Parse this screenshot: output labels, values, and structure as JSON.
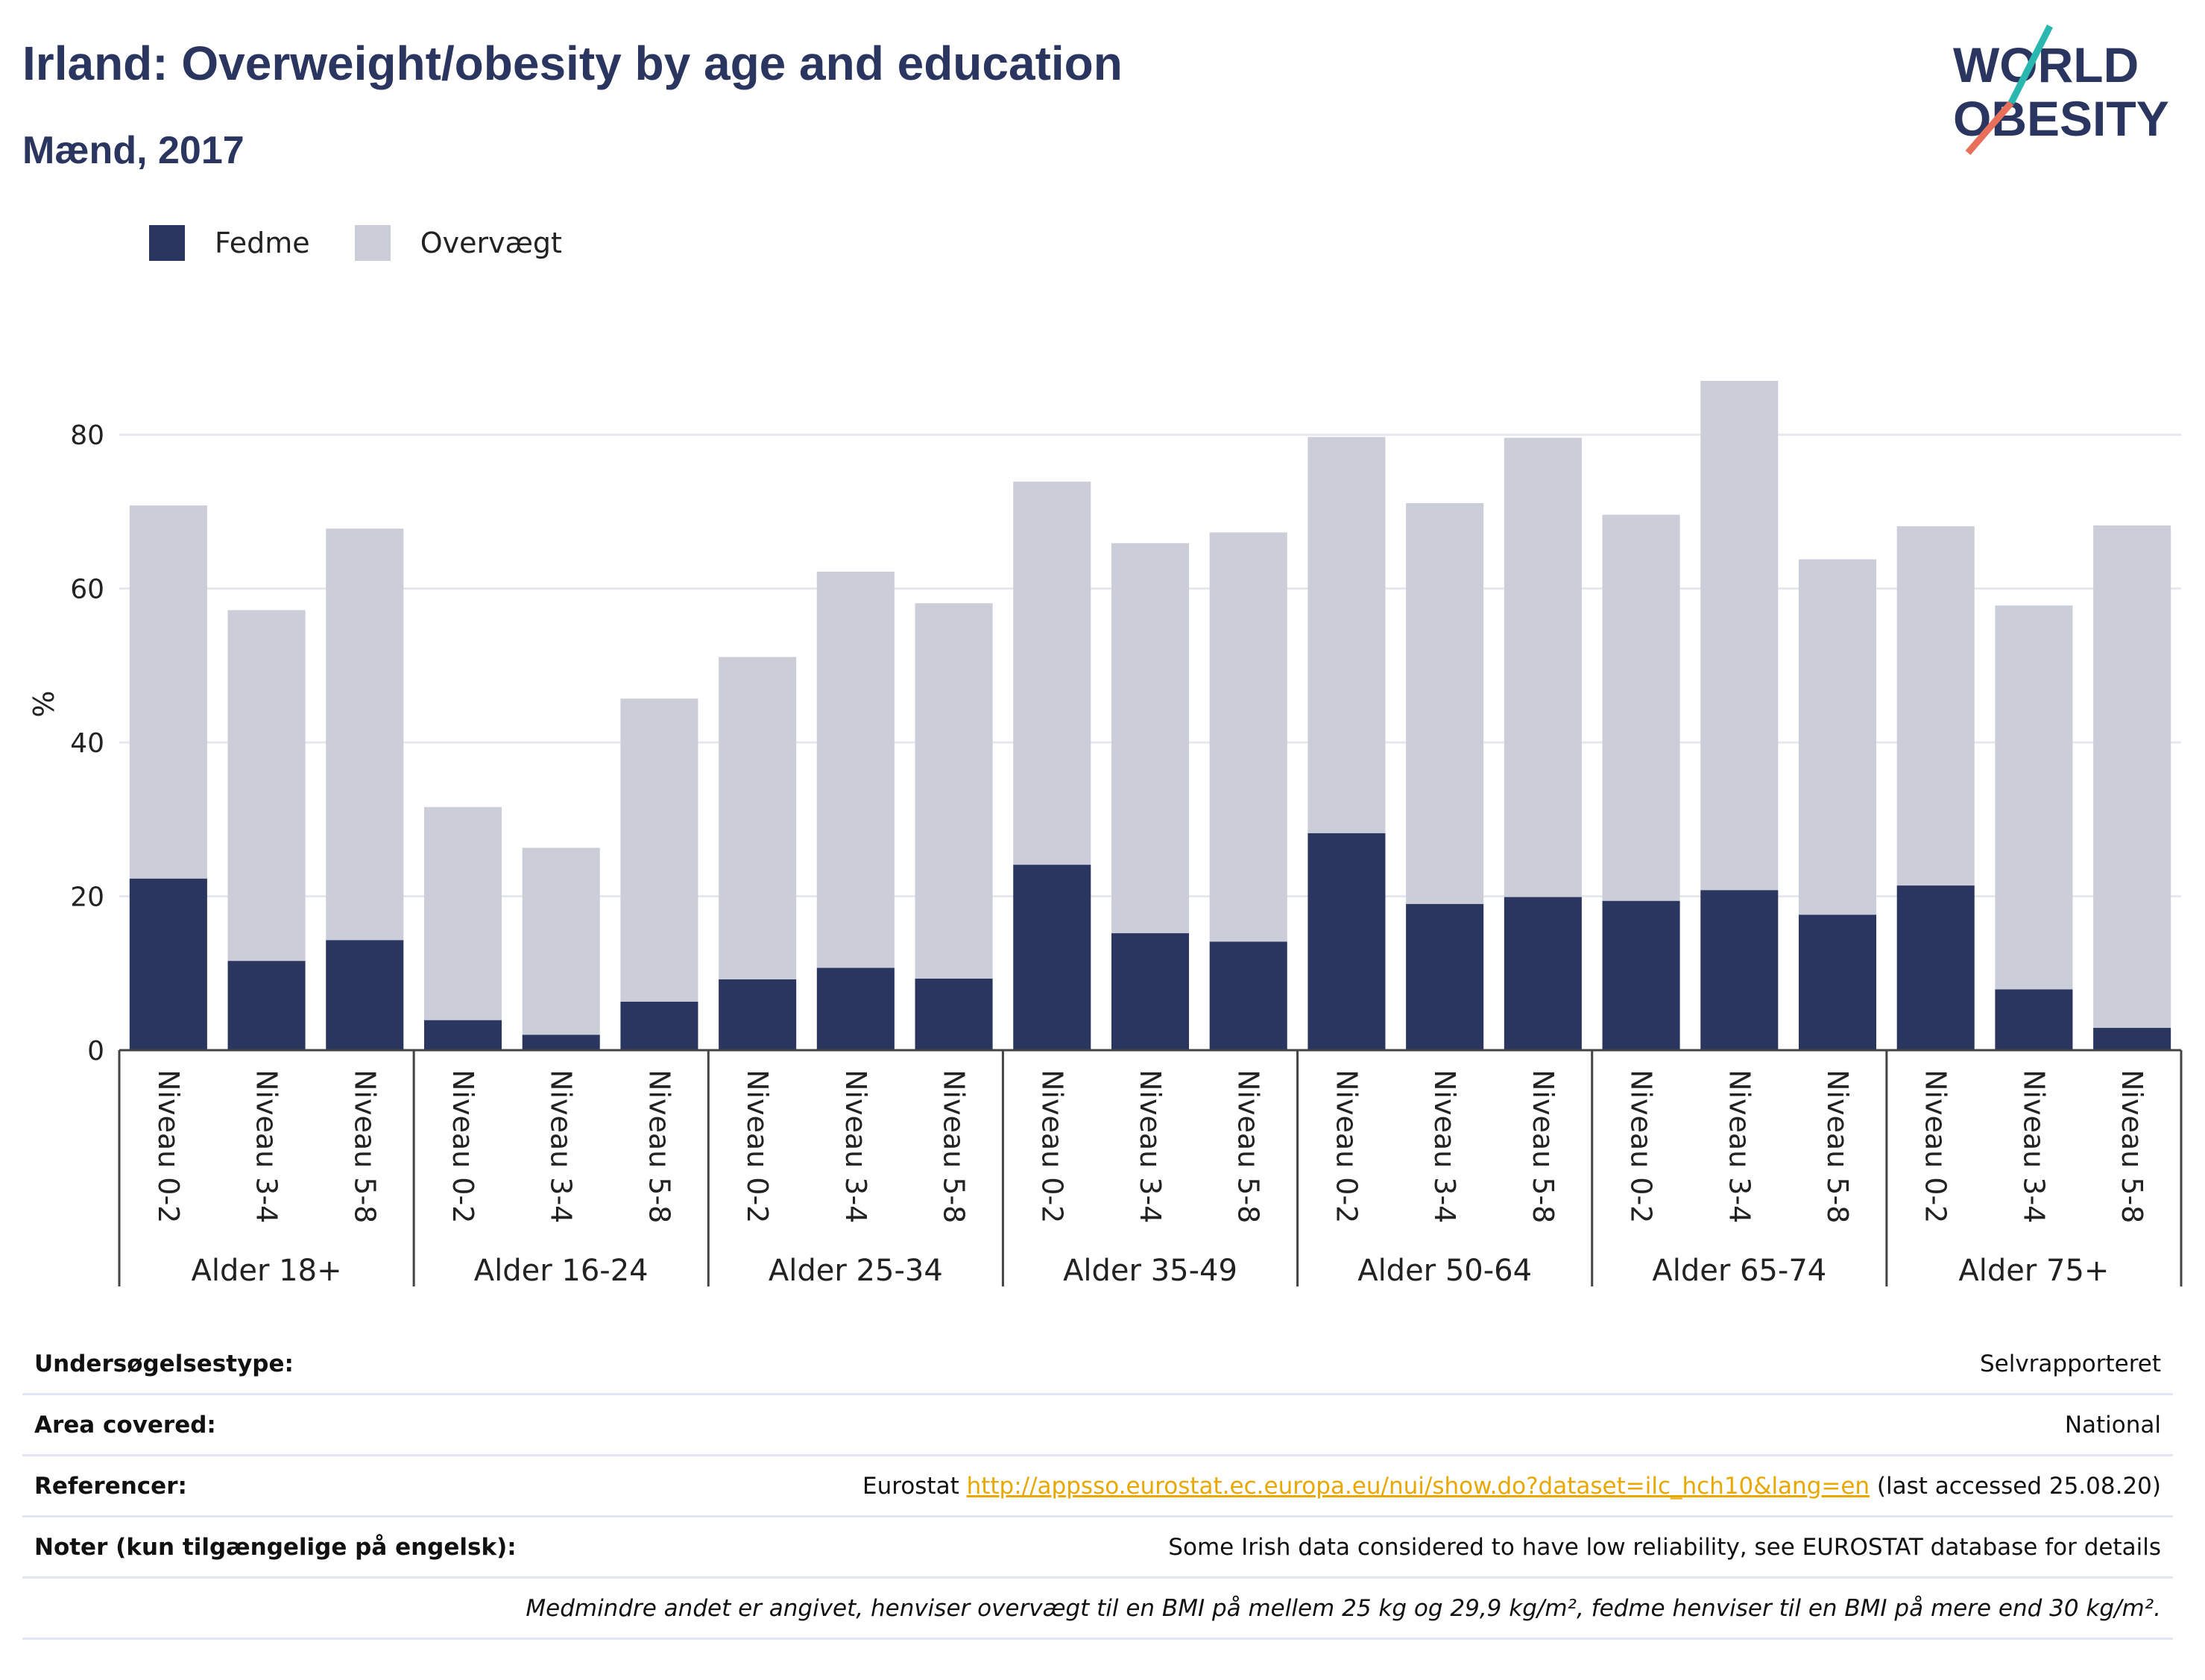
{
  "title": "Irland: Overweight/obesity by age and education",
  "subtitle": "Mænd, 2017",
  "logo": {
    "line1": "WORLD",
    "line2": "OBESITY",
    "accent_teal": "#2ab7b0",
    "accent_coral": "#e8705a"
  },
  "colors": {
    "fedme": "#2a3560",
    "overvaegt": "#cbcdd9",
    "grid": "#e6e8ef",
    "axis": "#444444"
  },
  "legend": [
    {
      "label": "Fedme",
      "color": "#2a3560"
    },
    {
      "label": "Overvægt",
      "color": "#cbcdd9"
    }
  ],
  "chart_data": {
    "type": "bar",
    "stacked": true,
    "ylabel": "%",
    "ylim": [
      0,
      90
    ],
    "yticks": [
      0,
      20,
      40,
      60,
      80
    ],
    "grid": true,
    "legend_position": "top-left",
    "groups": [
      "Alder 18+",
      "Alder 16-24",
      "Alder 25-34",
      "Alder 35-49",
      "Alder 50-64",
      "Alder 65-74",
      "Alder 75+"
    ],
    "subcategories": [
      "Niveau 0-2",
      "Niveau 3-4",
      "Niveau 5-8"
    ],
    "series": [
      {
        "name": "Fedme",
        "values": [
          22.3,
          11.6,
          14.3,
          3.9,
          2.0,
          6.3,
          9.2,
          10.7,
          9.3,
          24.1,
          15.2,
          14.1,
          28.2,
          19.0,
          19.9,
          19.4,
          20.8,
          17.6,
          21.4,
          7.9,
          2.9
        ]
      },
      {
        "name": "Overvægt",
        "values": [
          48.5,
          45.6,
          53.5,
          27.7,
          24.3,
          39.4,
          41.9,
          51.5,
          48.8,
          49.8,
          50.7,
          53.2,
          51.5,
          52.1,
          59.7,
          50.2,
          66.2,
          46.2,
          46.7,
          49.9,
          65.3
        ]
      }
    ]
  },
  "info": {
    "survey_label": "Undersøgelsestype:",
    "survey_value": "Selvrapporteret",
    "area_label": "Area covered:",
    "area_value": "National",
    "ref_label": "Referencer:",
    "ref_prefix": "Eurostat ",
    "ref_link": "http://appsso.eurostat.ec.europa.eu/nui/show.do?dataset=ilc_hch10&lang=en",
    "ref_suffix": " (last accessed 25.08.20)",
    "notes_label": "Noter (kun tilgængelige på engelsk):",
    "notes_value": "Some Irish data considered to have low reliability, see EUROSTAT database for details",
    "footnote": "Medmindre andet er angivet, henviser overvægt til en BMI på mellem 25 kg og 29,9 kg/m², fedme henviser til en BMI på mere end 30 kg/m²."
  }
}
